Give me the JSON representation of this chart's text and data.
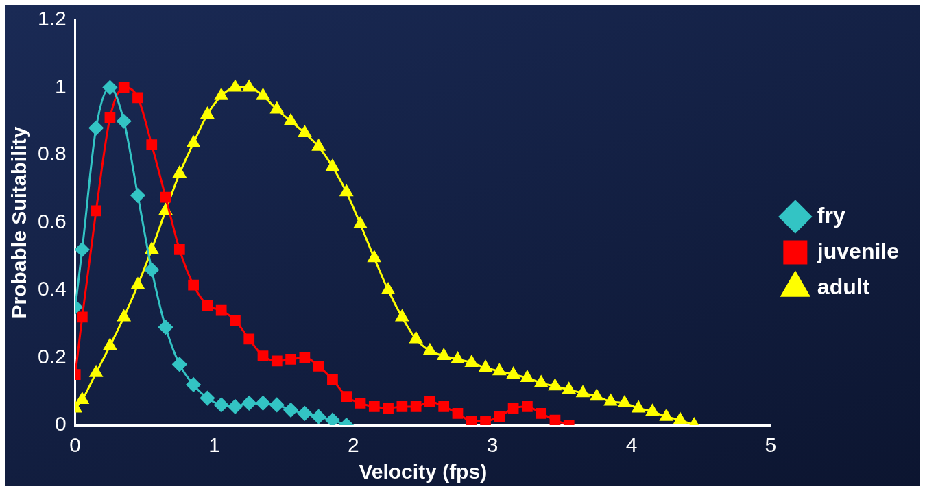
{
  "chart_data": {
    "type": "line",
    "xlabel": "Velocity (fps)",
    "ylabel": "Probable Suitability",
    "xlim": [
      0,
      5
    ],
    "xticks": [
      0,
      1,
      2,
      3,
      4,
      5
    ],
    "ylim": [
      0,
      1.2
    ],
    "yticks": [
      0,
      0.2,
      0.4,
      0.6,
      0.8,
      1,
      1.2
    ],
    "grid": false,
    "legend": "right",
    "line_style": "solid",
    "series": [
      {
        "name": "fry",
        "color": "#33c4c4",
        "marker": "diamond",
        "x": [
          0,
          0.05,
          0.15,
          0.25,
          0.35,
          0.45,
          0.55,
          0.65,
          0.75,
          0.85,
          0.95,
          1.05,
          1.15,
          1.25,
          1.35,
          1.45,
          1.55,
          1.65,
          1.75,
          1.85,
          1.95
        ],
        "values": [
          0.35,
          0.52,
          0.88,
          1.0,
          0.9,
          0.68,
          0.46,
          0.29,
          0.18,
          0.12,
          0.08,
          0.06,
          0.055,
          0.065,
          0.065,
          0.06,
          0.045,
          0.035,
          0.025,
          0.015,
          0
        ]
      },
      {
        "name": "juvenile",
        "color": "#ff0000",
        "marker": "square",
        "x": [
          0,
          0.05,
          0.15,
          0.25,
          0.35,
          0.45,
          0.55,
          0.65,
          0.75,
          0.85,
          0.95,
          1.05,
          1.15,
          1.25,
          1.35,
          1.45,
          1.55,
          1.65,
          1.75,
          1.85,
          1.95,
          2.05,
          2.15,
          2.25,
          2.35,
          2.45,
          2.55,
          2.65,
          2.75,
          2.85,
          2.95,
          3.05,
          3.15,
          3.25,
          3.35,
          3.45,
          3.55
        ],
        "values": [
          0.15,
          0.32,
          0.635,
          0.91,
          1.0,
          0.97,
          0.83,
          0.675,
          0.52,
          0.415,
          0.355,
          0.34,
          0.31,
          0.255,
          0.205,
          0.19,
          0.195,
          0.2,
          0.175,
          0.135,
          0.085,
          0.065,
          0.055,
          0.05,
          0.055,
          0.055,
          0.07,
          0.055,
          0.035,
          0.012,
          0.012,
          0.025,
          0.05,
          0.055,
          0.035,
          0.015,
          0
        ]
      },
      {
        "name": "adult",
        "color": "#ffff00",
        "marker": "triangle",
        "x": [
          0,
          0.05,
          0.15,
          0.25,
          0.35,
          0.45,
          0.55,
          0.65,
          0.75,
          0.85,
          0.95,
          1.05,
          1.15,
          1.25,
          1.35,
          1.45,
          1.55,
          1.65,
          1.75,
          1.85,
          1.95,
          2.05,
          2.15,
          2.25,
          2.35,
          2.45,
          2.55,
          2.65,
          2.75,
          2.85,
          2.95,
          3.05,
          3.15,
          3.25,
          3.35,
          3.45,
          3.55,
          3.65,
          3.75,
          3.85,
          3.95,
          4.05,
          4.15,
          4.25,
          4.35,
          4.45
        ],
        "values": [
          0.05,
          0.075,
          0.155,
          0.235,
          0.32,
          0.415,
          0.52,
          0.635,
          0.745,
          0.835,
          0.92,
          0.975,
          1.0,
          1.0,
          0.975,
          0.935,
          0.9,
          0.865,
          0.825,
          0.765,
          0.69,
          0.595,
          0.495,
          0.4,
          0.32,
          0.255,
          0.22,
          0.205,
          0.195,
          0.185,
          0.17,
          0.16,
          0.15,
          0.14,
          0.125,
          0.115,
          0.105,
          0.095,
          0.085,
          0.07,
          0.065,
          0.05,
          0.04,
          0.025,
          0.015,
          0
        ]
      }
    ]
  }
}
